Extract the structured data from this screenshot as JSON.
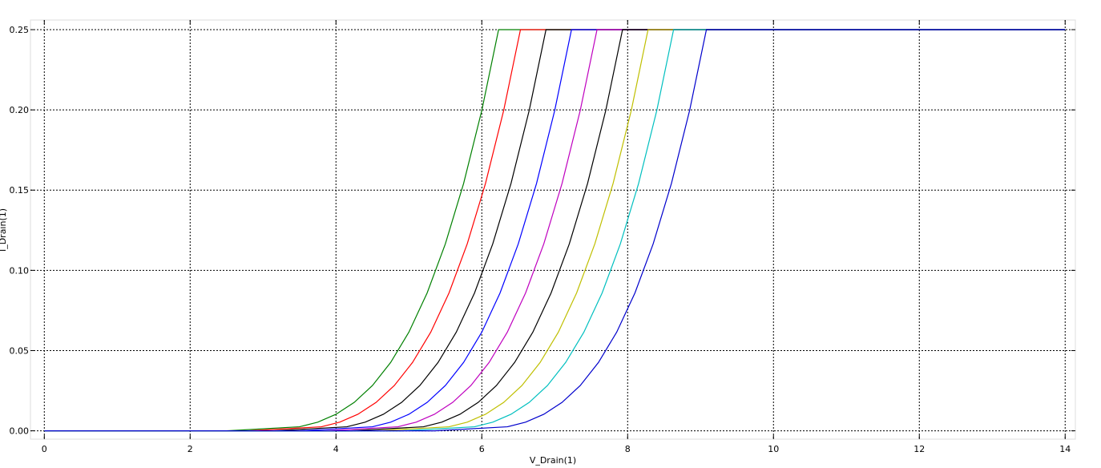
{
  "chart_data": {
    "type": "line",
    "x_label": "V_Drain(1)",
    "y_label": "I_Drain(1)",
    "xlim": [
      -0.19,
      14.14
    ],
    "ylim": [
      -0.0052,
      0.256
    ],
    "xticks": [
      0,
      2,
      4,
      6,
      8,
      10,
      12,
      14
    ],
    "yticks": [
      {
        "value": 0,
        "label": "0.00"
      },
      {
        "value": 0.05,
        "label": "0.05"
      },
      {
        "value": 0.1,
        "label": "0.10"
      },
      {
        "value": 0.15,
        "label": "0.15"
      },
      {
        "value": 0.2,
        "label": "0.20"
      },
      {
        "value": 0.25,
        "label": "0.25"
      }
    ],
    "grid": true,
    "series": [
      {
        "color": "#008000",
        "x": [
          0,
          2.5,
          3.5,
          3.75,
          4,
          4.25,
          4.5,
          4.75,
          5,
          5.25,
          5.5,
          5.75,
          6,
          6.23,
          14
        ],
        "values": [
          0,
          0,
          0.0025,
          0.0054,
          0.0103,
          0.0177,
          0.0282,
          0.0426,
          0.0615,
          0.0859,
          0.1165,
          0.1541,
          0.1997,
          0.25,
          0.25
        ]
      },
      {
        "color": "#ff0000",
        "x": [
          0,
          2.8,
          3.8,
          4.05,
          4.3,
          4.55,
          4.8,
          5.05,
          5.3,
          5.55,
          5.8,
          6.05,
          6.3,
          6.53,
          14
        ],
        "values": [
          0,
          0,
          0.0025,
          0.0054,
          0.0103,
          0.0177,
          0.0282,
          0.0426,
          0.0615,
          0.0859,
          0.1165,
          0.1541,
          0.1997,
          0.25,
          0.25
        ]
      },
      {
        "color": "#000000",
        "x": [
          0,
          3.15,
          4.15,
          4.4,
          4.65,
          4.9,
          5.15,
          5.4,
          5.65,
          5.9,
          6.15,
          6.4,
          6.65,
          6.88,
          14
        ],
        "values": [
          0,
          0,
          0.0025,
          0.0054,
          0.0103,
          0.0177,
          0.0282,
          0.0426,
          0.0615,
          0.0859,
          0.1165,
          0.1541,
          0.1997,
          0.25,
          0.25
        ]
      },
      {
        "color": "#0000ff",
        "x": [
          0,
          3.5,
          4.5,
          4.75,
          5,
          5.25,
          5.5,
          5.75,
          6,
          6.25,
          6.5,
          6.75,
          7,
          7.23,
          14
        ],
        "values": [
          0,
          0,
          0.0025,
          0.0054,
          0.0103,
          0.0177,
          0.0282,
          0.0426,
          0.0615,
          0.0859,
          0.1165,
          0.1541,
          0.1997,
          0.25,
          0.25
        ]
      },
      {
        "color": "#bf00bf",
        "x": [
          0,
          3.85,
          4.85,
          5.1,
          5.35,
          5.6,
          5.85,
          6.1,
          6.35,
          6.6,
          6.85,
          7.1,
          7.35,
          7.58,
          14
        ],
        "values": [
          0,
          0,
          0.0025,
          0.0054,
          0.0103,
          0.0177,
          0.0282,
          0.0426,
          0.0615,
          0.0859,
          0.1165,
          0.1541,
          0.1997,
          0.25,
          0.25
        ]
      },
      {
        "color": "#000000",
        "x": [
          0,
          4.2,
          5.2,
          5.45,
          5.7,
          5.95,
          6.2,
          6.45,
          6.7,
          6.95,
          7.2,
          7.45,
          7.7,
          7.93,
          14
        ],
        "values": [
          0,
          0,
          0.0025,
          0.0054,
          0.0103,
          0.0177,
          0.0282,
          0.0426,
          0.0615,
          0.0859,
          0.1165,
          0.1541,
          0.1997,
          0.25,
          0.25
        ]
      },
      {
        "color": "#bfbf00",
        "x": [
          0,
          4.55,
          5.55,
          5.8,
          6.05,
          6.3,
          6.55,
          6.8,
          7.05,
          7.3,
          7.55,
          7.8,
          8.05,
          8.28,
          14
        ],
        "values": [
          0,
          0,
          0.0025,
          0.0054,
          0.0103,
          0.0177,
          0.0282,
          0.0426,
          0.0615,
          0.0859,
          0.1165,
          0.1541,
          0.1997,
          0.25,
          0.25
        ]
      },
      {
        "color": "#00bfbf",
        "x": [
          0,
          4.9,
          5.9,
          6.15,
          6.4,
          6.65,
          6.9,
          7.15,
          7.4,
          7.65,
          7.9,
          8.15,
          8.4,
          8.63,
          14
        ],
        "values": [
          0,
          0,
          0.0025,
          0.0054,
          0.0103,
          0.0177,
          0.0282,
          0.0426,
          0.0615,
          0.0859,
          0.1165,
          0.1541,
          0.1997,
          0.25,
          0.25
        ]
      },
      {
        "color": "#0000cc",
        "x": [
          0,
          5.35,
          6.35,
          6.6,
          6.85,
          7.1,
          7.35,
          7.6,
          7.85,
          8.1,
          8.35,
          8.6,
          8.85,
          9.08,
          14
        ],
        "values": [
          0,
          0,
          0.0025,
          0.0054,
          0.0103,
          0.0177,
          0.0282,
          0.0426,
          0.0615,
          0.0859,
          0.1165,
          0.1541,
          0.1997,
          0.25,
          0.25
        ]
      }
    ]
  }
}
